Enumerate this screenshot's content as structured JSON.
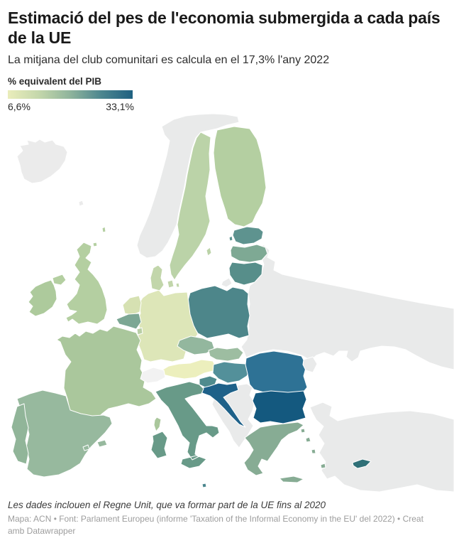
{
  "header": {
    "title": "Estimació del pes de l'economia submergida a cada país de la UE",
    "subtitle": "La mitjana del club comunitari es calcula en el 17,3% l'any 2022"
  },
  "legend": {
    "label": "% equivalent del PIB",
    "min_label": "6,6%",
    "max_label": "33,1%",
    "gradient": [
      "#eaedbb",
      "#c4d7ab",
      "#8fb49c",
      "#4c868f",
      "#1f6181"
    ]
  },
  "footer": {
    "note": "Les dades inclouen el Regne Unit, que va formar part de la UE fins al 2020",
    "credits": "Mapa: ACN • Font: Parlament Europeu (informe 'Taxation of the Informal Economy in the EU' del 2022) • Creat amb Datawrapper"
  },
  "colors": {
    "sea": "#ffffff",
    "border": "#ffffff",
    "non_eu": "#e9eaea",
    "switzerland": "#f2f2f2"
  },
  "chart_data": {
    "type": "choropleth",
    "title": "Estimació del pes de l'economia submergida a cada país de la UE",
    "metric": "% equivalent del PIB",
    "scale": {
      "kind": "continuous",
      "min": 6.6,
      "max": 33.1,
      "min_label": "6,6%",
      "max_label": "33,1%",
      "gradient": [
        "#eaedbb",
        "#c4d7ab",
        "#8fb49c",
        "#4c868f",
        "#1f6181"
      ]
    },
    "eu_average": {
      "label": "17,3%",
      "year": "2022"
    },
    "note": "Inclou el Regne Unit (membre de la UE fins al 2020)",
    "countries": [
      {
        "id": "russia-belarus-ukraine",
        "fill": "#e9eaea",
        "eu": false
      },
      {
        "id": "turkey",
        "fill": "#e9eaea",
        "eu": false
      },
      {
        "id": "west-balkans",
        "fill": "#e9eaea",
        "eu": false
      },
      {
        "id": "norway",
        "fill": "#e9eaea",
        "eu": false
      },
      {
        "id": "iceland",
        "fill": "#ebebeb",
        "eu": false
      },
      {
        "id": "faroe",
        "fill": "#ebebeb",
        "eu": false
      },
      {
        "id": "finland",
        "fill": "#b4cfa1",
        "eu": true
      },
      {
        "id": "sweden",
        "fill": "#bbd3a8",
        "eu": true
      },
      {
        "id": "estonia",
        "fill": "#5e938f",
        "eu": true
      },
      {
        "id": "latvia",
        "fill": "#7ea994",
        "eu": true
      },
      {
        "id": "lithuania",
        "fill": "#578e8a",
        "eu": true
      },
      {
        "id": "kaliningrad",
        "fill": "#e9eaea",
        "eu": false
      },
      {
        "id": "poland",
        "fill": "#4d868a",
        "eu": true
      },
      {
        "id": "germany",
        "fill": "#dde6b8",
        "eu": true
      },
      {
        "id": "denmark",
        "fill": "#c2d6ab",
        "eu": true
      },
      {
        "id": "netherlands",
        "fill": "#d6e1b2",
        "eu": true
      },
      {
        "id": "belgium",
        "fill": "#7ca794",
        "eu": true
      },
      {
        "id": "luxembourg",
        "fill": "#b9cfa5",
        "eu": true
      },
      {
        "id": "czechia",
        "fill": "#93b79e",
        "eu": true
      },
      {
        "id": "slovakia",
        "fill": "#9dbda1",
        "eu": true
      },
      {
        "id": "austria",
        "fill": "#ecefbd",
        "eu": true
      },
      {
        "id": "hungary",
        "fill": "#53909a",
        "eu": true
      },
      {
        "id": "slovenia",
        "fill": "#4f8b8e",
        "eu": true
      },
      {
        "id": "croatia",
        "fill": "#1e6189",
        "eu": true
      },
      {
        "id": "romania",
        "fill": "#2e7295",
        "eu": true
      },
      {
        "id": "moldova",
        "fill": "#e9eaea",
        "eu": false
      },
      {
        "id": "bulgaria",
        "fill": "#14597f",
        "eu": true
      },
      {
        "id": "greece",
        "fill": "#87ac94",
        "eu": true
      },
      {
        "id": "italy",
        "fill": "#689a88",
        "eu": true
      },
      {
        "id": "malta",
        "fill": "#4a868d",
        "eu": true
      },
      {
        "id": "france",
        "fill": "#aac79c",
        "eu": true
      },
      {
        "id": "switzerland",
        "fill": "#f2f2f2",
        "eu": false
      },
      {
        "id": "spain",
        "fill": "#97b99e",
        "eu": true
      },
      {
        "id": "portugal",
        "fill": "#91b599",
        "eu": true
      },
      {
        "id": "united-kingdom",
        "fill": "#b4cfa1",
        "eu": true
      },
      {
        "id": "ireland",
        "fill": "#adca9c",
        "eu": true
      },
      {
        "id": "cyprus",
        "fill": "#2f7077",
        "eu": true
      }
    ]
  }
}
